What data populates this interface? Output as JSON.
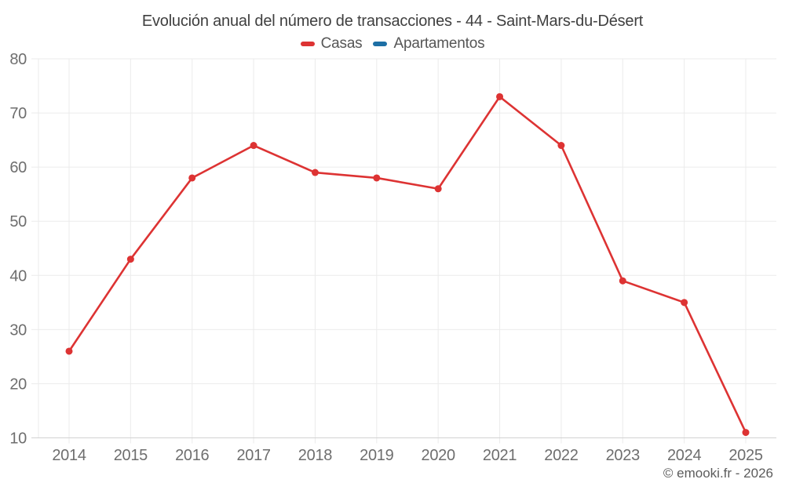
{
  "header": {
    "title": "Evolución anual del número de transacciones - 44 - Saint-Mars-du-Désert"
  },
  "legend": {
    "items": [
      {
        "label": "Casas",
        "color": "#dd3333"
      },
      {
        "label": "Apartamentos",
        "color": "#1d6fa5"
      }
    ]
  },
  "footer": {
    "credit": "© emooki.fr - 2026"
  },
  "chart_data": {
    "type": "line",
    "title": "Evolución anual del número de transacciones - 44 - Saint-Mars-du-Désert",
    "categories": [
      "2014",
      "2015",
      "2016",
      "2017",
      "2018",
      "2019",
      "2020",
      "2021",
      "2022",
      "2023",
      "2024",
      "2025"
    ],
    "series": [
      {
        "name": "Casas",
        "color": "#dd3333",
        "values": [
          26,
          43,
          58,
          64,
          59,
          58,
          56,
          73,
          64,
          39,
          35,
          11
        ]
      },
      {
        "name": "Apartamentos",
        "color": "#1d6fa5",
        "values": []
      }
    ],
    "xlabel": "",
    "ylabel": "",
    "ylim": [
      10,
      80
    ],
    "yticks": [
      10,
      20,
      30,
      40,
      50,
      60,
      70,
      80
    ],
    "grid": true,
    "legend_position": "top",
    "colors": {
      "grid": "#ebebeb",
      "axis_line": "#d2d2d2",
      "tick_label": "#6e6e6e"
    }
  }
}
